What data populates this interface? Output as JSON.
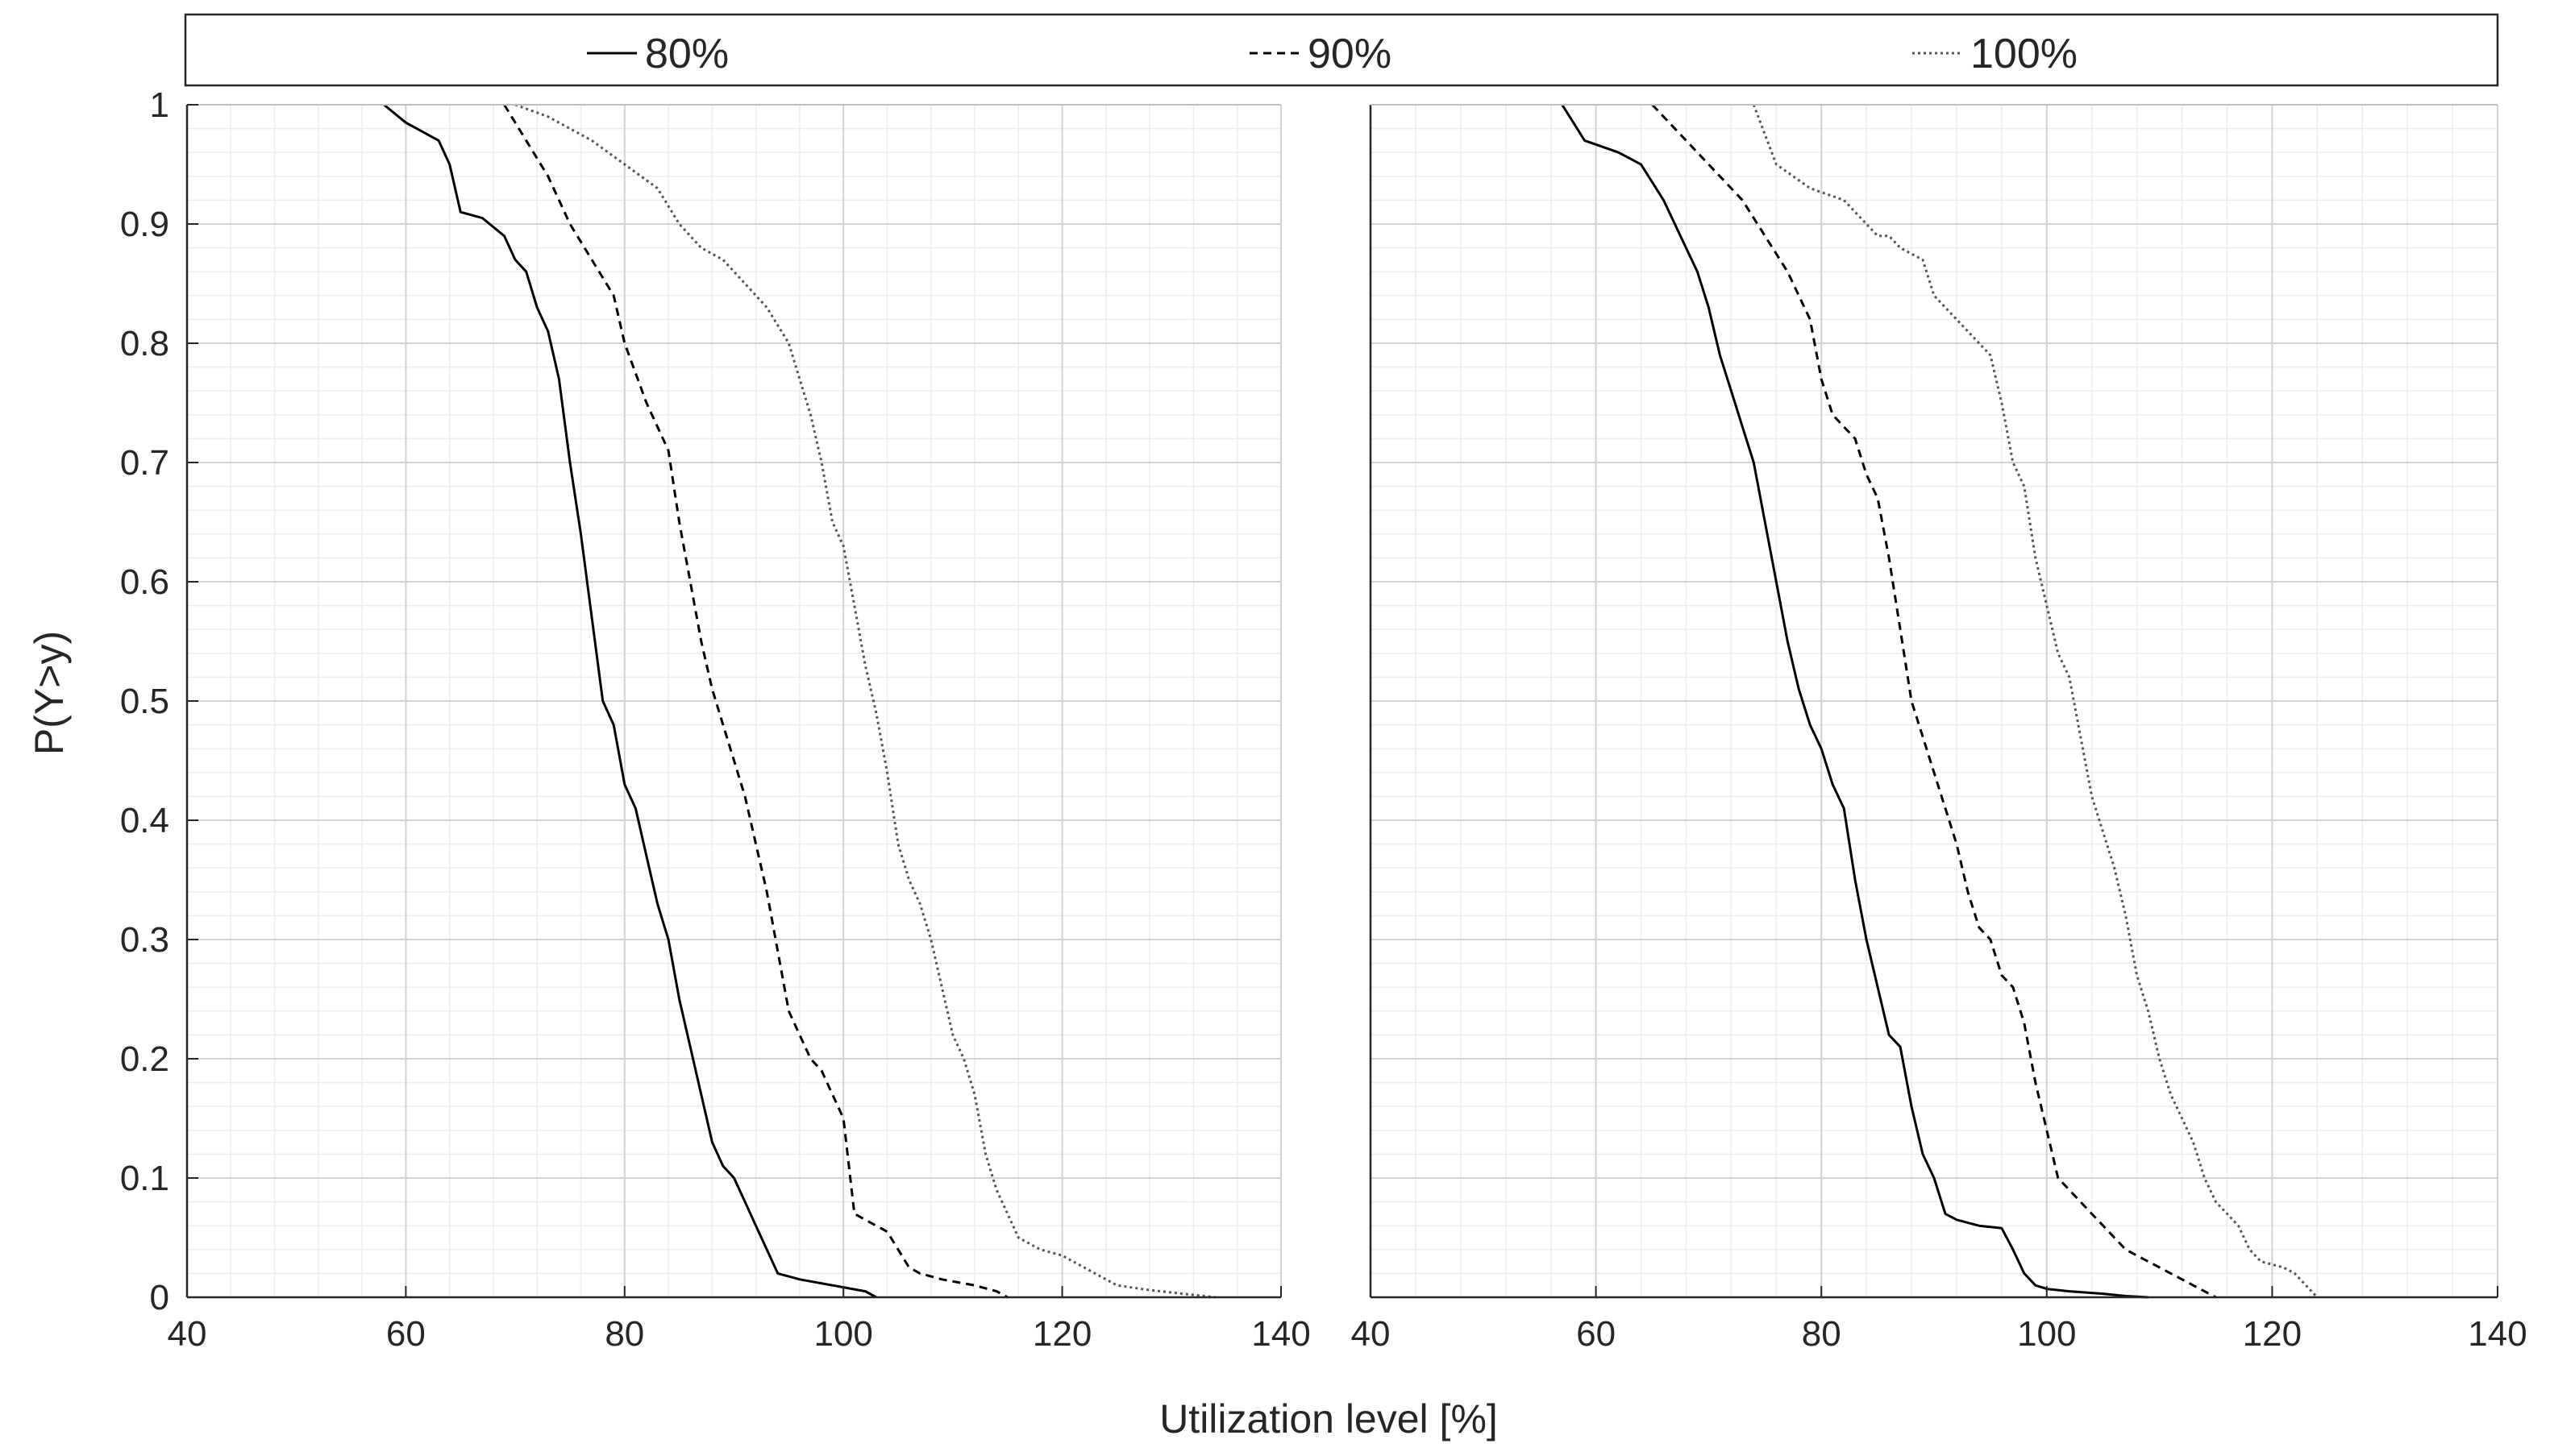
{
  "figure": {
    "ylabel": "P(Y>y)",
    "xlabel": "Utilization level [%]"
  },
  "legend": {
    "items": [
      {
        "label": "80%",
        "style": "solid"
      },
      {
        "label": "90%",
        "style": "dashed"
      },
      {
        "label": "100%",
        "style": "dotted"
      }
    ]
  },
  "chart_data": [
    {
      "type": "line",
      "panel": "left",
      "xlim": [
        40,
        140
      ],
      "ylim": [
        0,
        1
      ],
      "xticks": [
        40,
        60,
        80,
        100,
        120,
        140
      ],
      "yticks": [
        0,
        0.1,
        0.2,
        0.3,
        0.4,
        0.5,
        0.6,
        0.7,
        0.8,
        0.9,
        1
      ],
      "grid": true,
      "minor_grid": true,
      "series": [
        {
          "name": "80%",
          "style": "solid",
          "color": "#000000",
          "x": [
            58,
            60,
            63,
            64,
            65,
            67,
            69,
            70,
            71,
            72,
            73,
            74,
            75,
            76,
            77,
            78,
            79,
            80,
            81,
            82,
            83,
            84,
            85,
            86,
            87,
            88,
            89,
            90,
            91,
            92,
            93,
            94,
            96,
            99,
            102,
            103
          ],
          "y": [
            1.0,
            0.985,
            0.97,
            0.95,
            0.91,
            0.905,
            0.89,
            0.87,
            0.86,
            0.83,
            0.81,
            0.77,
            0.7,
            0.64,
            0.57,
            0.5,
            0.48,
            0.43,
            0.41,
            0.37,
            0.33,
            0.3,
            0.25,
            0.21,
            0.17,
            0.13,
            0.11,
            0.1,
            0.08,
            0.06,
            0.04,
            0.02,
            0.015,
            0.01,
            0.005,
            0.0
          ]
        },
        {
          "name": "90%",
          "style": "dashed",
          "color": "#000000",
          "x": [
            69,
            71,
            73,
            75,
            77,
            79,
            80,
            82,
            84,
            85,
            86,
            87,
            88,
            89,
            90,
            91,
            92,
            93,
            94,
            95,
            96,
            97,
            98,
            99,
            100,
            101,
            102,
            103,
            104,
            105,
            106,
            107,
            109,
            112,
            114,
            115
          ],
          "y": [
            1.0,
            0.97,
            0.94,
            0.9,
            0.87,
            0.84,
            0.8,
            0.75,
            0.71,
            0.65,
            0.6,
            0.55,
            0.51,
            0.48,
            0.45,
            0.42,
            0.38,
            0.34,
            0.29,
            0.24,
            0.22,
            0.2,
            0.19,
            0.17,
            0.15,
            0.07,
            0.065,
            0.06,
            0.055,
            0.04,
            0.025,
            0.02,
            0.015,
            0.01,
            0.005,
            0.0
          ]
        },
        {
          "name": "100%",
          "style": "dotted",
          "color": "#555555",
          "x": [
            70,
            73,
            77,
            80,
            83,
            85,
            87,
            89,
            91,
            93,
            95,
            96,
            97,
            98,
            99,
            100,
            101,
            102,
            103,
            104,
            105,
            106,
            107,
            108,
            109,
            110,
            111,
            112,
            113,
            114,
            115,
            116,
            118,
            120,
            123,
            125,
            128,
            131,
            134
          ],
          "y": [
            1.0,
            0.99,
            0.97,
            0.95,
            0.93,
            0.9,
            0.88,
            0.87,
            0.85,
            0.83,
            0.8,
            0.77,
            0.74,
            0.7,
            0.65,
            0.63,
            0.58,
            0.53,
            0.49,
            0.44,
            0.38,
            0.35,
            0.33,
            0.3,
            0.26,
            0.22,
            0.2,
            0.17,
            0.12,
            0.09,
            0.07,
            0.05,
            0.04,
            0.035,
            0.02,
            0.01,
            0.006,
            0.003,
            0.0
          ]
        }
      ]
    },
    {
      "type": "line",
      "panel": "right",
      "xlim": [
        40,
        140
      ],
      "ylim": [
        0,
        1
      ],
      "xticks": [
        40,
        60,
        80,
        100,
        120,
        140
      ],
      "yticks": [
        0,
        0.1,
        0.2,
        0.3,
        0.4,
        0.5,
        0.6,
        0.7,
        0.8,
        0.9,
        1
      ],
      "grid": true,
      "minor_grid": true,
      "series": [
        {
          "name": "80%",
          "style": "solid",
          "color": "#000000",
          "x": [
            57,
            59,
            62,
            64,
            66,
            68,
            69,
            70,
            71,
            72,
            73,
            74,
            75,
            76,
            77,
            78,
            79,
            80,
            81,
            82,
            83,
            84,
            85,
            86,
            87,
            88,
            89,
            90,
            91,
            92,
            94,
            96,
            97,
            98,
            99,
            100,
            102,
            105,
            107,
            109
          ],
          "y": [
            1.0,
            0.97,
            0.96,
            0.95,
            0.92,
            0.88,
            0.86,
            0.83,
            0.79,
            0.76,
            0.73,
            0.7,
            0.65,
            0.6,
            0.55,
            0.51,
            0.48,
            0.46,
            0.43,
            0.41,
            0.35,
            0.3,
            0.26,
            0.22,
            0.21,
            0.16,
            0.12,
            0.1,
            0.07,
            0.065,
            0.06,
            0.058,
            0.04,
            0.02,
            0.01,
            0.007,
            0.005,
            0.003,
            0.001,
            0.0
          ]
        },
        {
          "name": "90%",
          "style": "dashed",
          "color": "#000000",
          "x": [
            65,
            67,
            69,
            71,
            73,
            75,
            77,
            79,
            80,
            81,
            83,
            84,
            85,
            86,
            87,
            88,
            89,
            90,
            91,
            92,
            93,
            94,
            95,
            96,
            97,
            98,
            99,
            100,
            101,
            102,
            103,
            104,
            105,
            106,
            107,
            109,
            111,
            113,
            115
          ],
          "y": [
            1.0,
            0.98,
            0.96,
            0.94,
            0.92,
            0.89,
            0.86,
            0.82,
            0.77,
            0.74,
            0.72,
            0.69,
            0.67,
            0.62,
            0.56,
            0.5,
            0.47,
            0.44,
            0.41,
            0.38,
            0.34,
            0.31,
            0.3,
            0.27,
            0.26,
            0.23,
            0.18,
            0.14,
            0.1,
            0.09,
            0.08,
            0.07,
            0.06,
            0.05,
            0.04,
            0.03,
            0.02,
            0.01,
            0.0
          ]
        },
        {
          "name": "100%",
          "style": "dotted",
          "color": "#555555",
          "x": [
            74,
            76,
            79,
            82,
            84,
            85,
            86,
            87,
            89,
            90,
            91,
            93,
            95,
            96,
            97,
            98,
            99,
            100,
            101,
            102,
            103,
            104,
            105,
            106,
            107,
            108,
            109,
            110,
            111,
            112,
            113,
            114,
            115,
            116,
            117,
            118,
            119,
            121,
            122,
            123,
            124
          ],
          "y": [
            1.0,
            0.95,
            0.93,
            0.92,
            0.9,
            0.89,
            0.89,
            0.88,
            0.87,
            0.84,
            0.83,
            0.81,
            0.79,
            0.75,
            0.7,
            0.68,
            0.62,
            0.58,
            0.54,
            0.52,
            0.47,
            0.42,
            0.39,
            0.36,
            0.32,
            0.27,
            0.24,
            0.2,
            0.17,
            0.15,
            0.13,
            0.1,
            0.08,
            0.07,
            0.06,
            0.04,
            0.03,
            0.025,
            0.02,
            0.01,
            0.0
          ]
        }
      ]
    }
  ]
}
